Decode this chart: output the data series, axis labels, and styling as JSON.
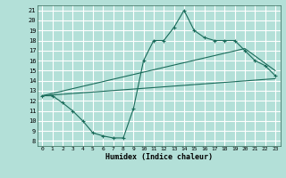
{
  "xlabel": "Humidex (Indice chaleur)",
  "bg_color": "#b3e0d8",
  "grid_color": "#ffffff",
  "line_color": "#1a6b5a",
  "xlim": [
    -0.5,
    23.5
  ],
  "ylim": [
    7.5,
    21.5
  ],
  "yticks": [
    8,
    9,
    10,
    11,
    12,
    13,
    14,
    15,
    16,
    17,
    18,
    19,
    20,
    21
  ],
  "xticks": [
    0,
    1,
    2,
    3,
    4,
    5,
    6,
    7,
    8,
    9,
    10,
    11,
    12,
    13,
    14,
    15,
    16,
    17,
    18,
    19,
    20,
    21,
    22,
    23
  ],
  "curve1_x": [
    0,
    1,
    2,
    3,
    4,
    5,
    6,
    7,
    8,
    9,
    10,
    11,
    12,
    13,
    14,
    15,
    16,
    17,
    18,
    19,
    20,
    21,
    22,
    23
  ],
  "curve1_y": [
    12.5,
    12.5,
    11.8,
    11.0,
    10.0,
    8.8,
    8.5,
    8.3,
    8.3,
    11.2,
    16.0,
    18.0,
    18.0,
    19.3,
    21.0,
    19.0,
    18.3,
    18.0,
    18.0,
    18.0,
    17.0,
    16.0,
    15.5,
    14.5
  ],
  "curve2_x": [
    0,
    20,
    23
  ],
  "curve2_y": [
    12.5,
    17.2,
    15.0
  ],
  "curve3_x": [
    0,
    23
  ],
  "curve3_y": [
    12.5,
    14.2
  ]
}
